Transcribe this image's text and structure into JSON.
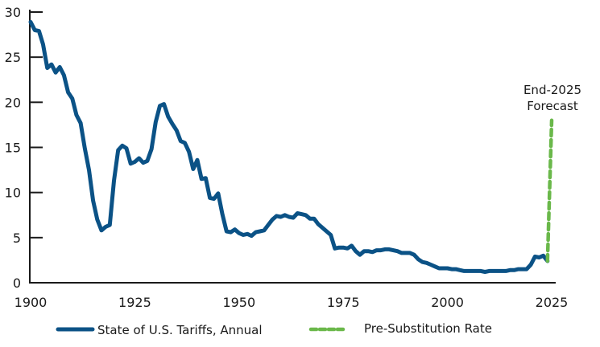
{
  "chart_data": {
    "type": "line",
    "title": "",
    "xlabel": "",
    "ylabel": "",
    "xlim": [
      1900,
      2025
    ],
    "ylim": [
      0,
      30
    ],
    "xticks": [
      1900,
      1925,
      1950,
      1975,
      2000,
      2025
    ],
    "yticks": [
      0,
      5,
      10,
      15,
      20,
      25,
      30
    ],
    "grid": false,
    "legend_position": "bottom",
    "annotation": {
      "line1": "End-2025",
      "line2": "Forecast"
    },
    "series": [
      {
        "name": "State of U.S. Tariffs, Annual",
        "color": "#0b5286",
        "style": "solid",
        "x": [
          1900,
          1901,
          1902,
          1903,
          1904,
          1905,
          1906,
          1907,
          1908,
          1909,
          1910,
          1911,
          1912,
          1913,
          1914,
          1915,
          1916,
          1917,
          1918,
          1919,
          1920,
          1921,
          1922,
          1923,
          1924,
          1925,
          1926,
          1927,
          1928,
          1929,
          1930,
          1931,
          1932,
          1933,
          1934,
          1935,
          1936,
          1937,
          1938,
          1939,
          1940,
          1941,
          1942,
          1943,
          1944,
          1945,
          1946,
          1947,
          1948,
          1949,
          1950,
          1951,
          1952,
          1953,
          1954,
          1955,
          1956,
          1957,
          1958,
          1959,
          1960,
          1961,
          1962,
          1963,
          1964,
          1965,
          1966,
          1967,
          1968,
          1969,
          1970,
          1971,
          1972,
          1973,
          1974,
          1975,
          1976,
          1977,
          1978,
          1979,
          1980,
          1981,
          1982,
          1983,
          1984,
          1985,
          1986,
          1987,
          1988,
          1989,
          1990,
          1991,
          1992,
          1993,
          1994,
          1995,
          1996,
          1997,
          1998,
          1999,
          2000,
          2001,
          2002,
          2003,
          2004,
          2005,
          2006,
          2007,
          2008,
          2009,
          2010,
          2011,
          2012,
          2013,
          2014,
          2015,
          2016,
          2017,
          2018,
          2019,
          2020,
          2021,
          2022,
          2023,
          2024
        ],
        "values": [
          28.9,
          28.0,
          27.9,
          26.4,
          23.8,
          24.2,
          23.3,
          23.9,
          23.0,
          21.1,
          20.4,
          18.6,
          17.7,
          14.9,
          12.5,
          9.1,
          7.0,
          5.8,
          6.2,
          6.4,
          11.3,
          14.7,
          15.2,
          14.9,
          13.2,
          13.4,
          13.8,
          13.3,
          13.5,
          14.8,
          17.8,
          19.6,
          19.8,
          18.4,
          17.6,
          16.9,
          15.7,
          15.5,
          14.5,
          12.6,
          13.6,
          11.5,
          11.6,
          9.4,
          9.3,
          9.9,
          7.6,
          5.7,
          5.6,
          5.9,
          5.5,
          5.3,
          5.4,
          5.2,
          5.6,
          5.7,
          5.8,
          6.4,
          7.0,
          7.4,
          7.3,
          7.5,
          7.3,
          7.2,
          7.7,
          7.6,
          7.5,
          7.1,
          7.1,
          6.5,
          6.1,
          5.7,
          5.3,
          3.8,
          3.9,
          3.9,
          3.8,
          4.1,
          3.5,
          3.1,
          3.5,
          3.5,
          3.4,
          3.6,
          3.6,
          3.7,
          3.7,
          3.6,
          3.5,
          3.3,
          3.3,
          3.3,
          3.1,
          2.6,
          2.3,
          2.2,
          2.0,
          1.8,
          1.6,
          1.6,
          1.6,
          1.5,
          1.5,
          1.4,
          1.3,
          1.3,
          1.3,
          1.3,
          1.3,
          1.2,
          1.3,
          1.3,
          1.3,
          1.3,
          1.3,
          1.4,
          1.4,
          1.5,
          1.5,
          1.5,
          2.0,
          2.9,
          2.8,
          3.0,
          2.4
        ]
      },
      {
        "name": "Pre-Substitution Rate",
        "color": "#6ab84a",
        "style": "dashed",
        "x": [
          2024,
          2025
        ],
        "values": [
          2.4,
          18.0
        ]
      }
    ]
  }
}
